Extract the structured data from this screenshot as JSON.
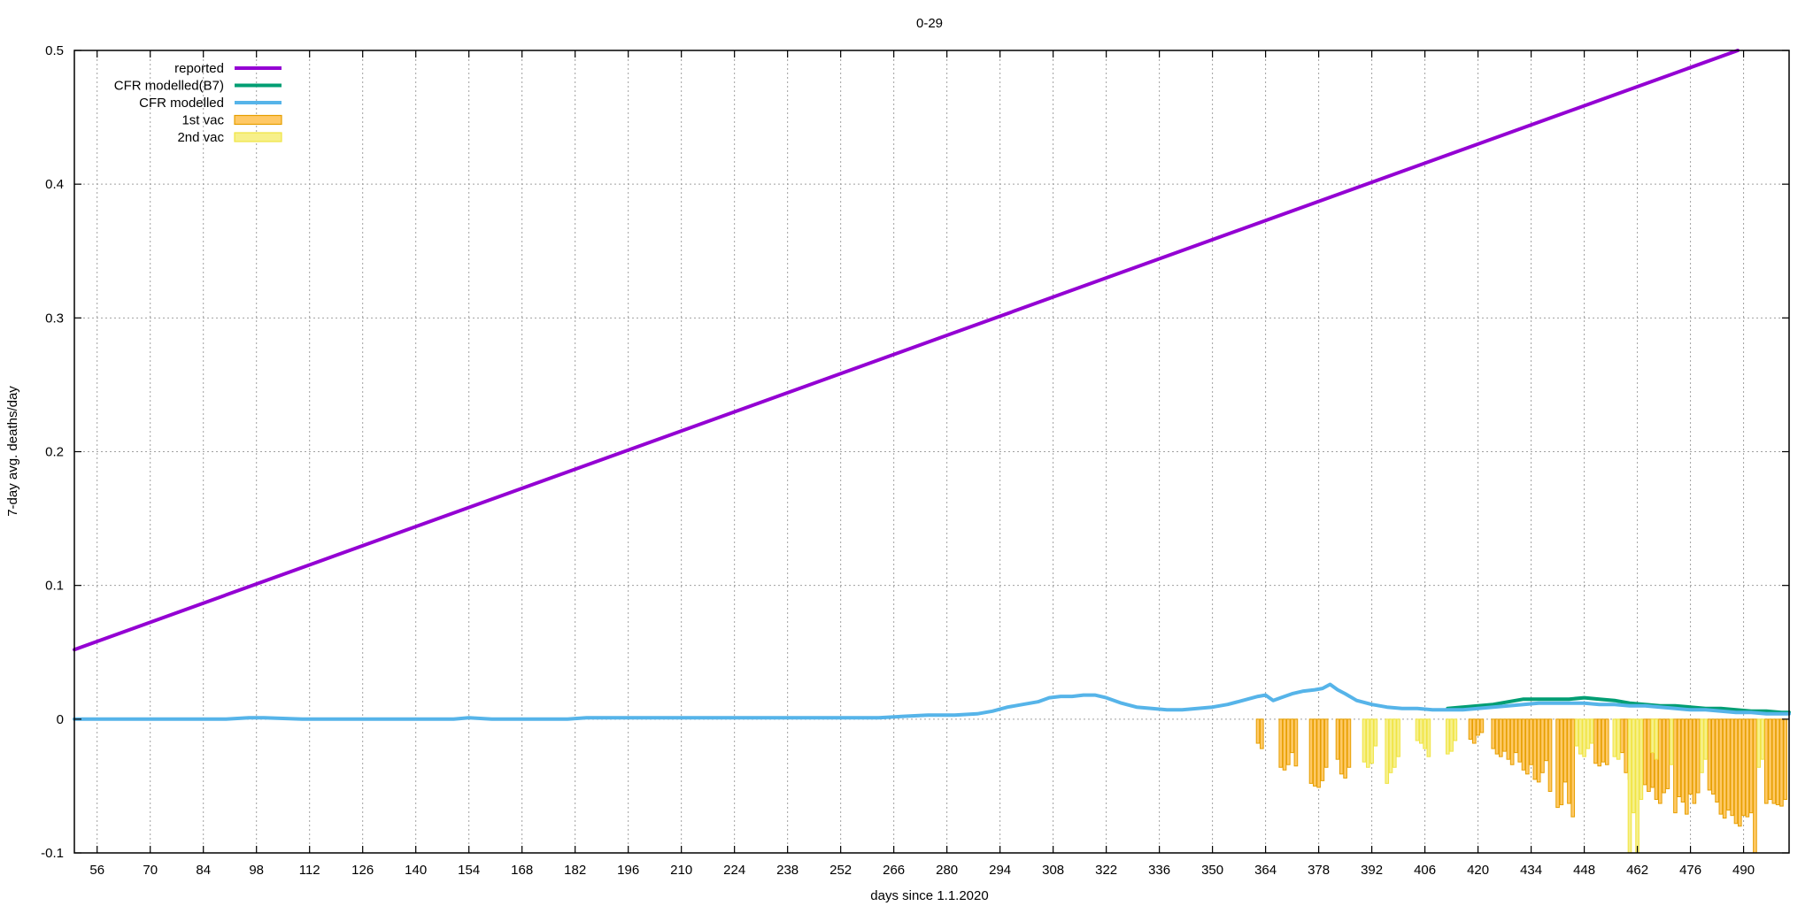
{
  "chart_data": {
    "type": "line",
    "title": "0-29",
    "xlabel": "days since 1.1.2020",
    "ylabel": "7-day avg. deaths/day",
    "xlim": [
      50,
      502
    ],
    "ylim": [
      -0.1,
      0.5
    ],
    "x_ticks": [
      56,
      70,
      84,
      98,
      112,
      126,
      140,
      154,
      168,
      182,
      196,
      210,
      224,
      238,
      252,
      266,
      280,
      294,
      308,
      322,
      336,
      350,
      364,
      378,
      392,
      406,
      420,
      434,
      448,
      462,
      476,
      490
    ],
    "y_ticks": [
      "-0.1",
      "0",
      "0.1",
      "0.2",
      "0.3",
      "0.4",
      "0.5"
    ],
    "grid": true,
    "legend_position": "top-left",
    "legend": [
      {
        "label": "reported",
        "color": "#9400d3",
        "kind": "line"
      },
      {
        "label": "CFR modelled(B7)",
        "color": "#009e73",
        "kind": "line"
      },
      {
        "label": "CFR modelled",
        "color": "#56b4e9",
        "kind": "line"
      },
      {
        "label": "1st vac",
        "color": "#e69f00",
        "kind": "bar"
      },
      {
        "label": "2nd vac",
        "color": "#f0e442",
        "kind": "bar"
      }
    ],
    "series": [
      {
        "name": "reported",
        "color": "#9400d3",
        "x": [
          50,
          488.5
        ],
        "y": [
          0.052,
          0.5
        ]
      },
      {
        "name": "CFR modelled(B7)",
        "color": "#009e73",
        "x": [
          412,
          416,
          420,
          424,
          428,
          432,
          436,
          440,
          444,
          448,
          452,
          456,
          460,
          464,
          468,
          472,
          476,
          480,
          484,
          488,
          492,
          496,
          500,
          502
        ],
        "y": [
          0.008,
          0.009,
          0.01,
          0.011,
          0.013,
          0.015,
          0.015,
          0.015,
          0.015,
          0.016,
          0.015,
          0.014,
          0.012,
          0.011,
          0.01,
          0.01,
          0.009,
          0.008,
          0.008,
          0.007,
          0.006,
          0.006,
          0.005,
          0.005
        ]
      },
      {
        "name": "CFR modelled",
        "color": "#56b4e9",
        "x": [
          50,
          90,
          96,
          100,
          110,
          150,
          154,
          160,
          180,
          185,
          200,
          240,
          262,
          268,
          275,
          282,
          288,
          292,
          296,
          300,
          304,
          307,
          310,
          313,
          316,
          319,
          322,
          326,
          330,
          334,
          338,
          342,
          346,
          350,
          354,
          358,
          362,
          364,
          366,
          368,
          371,
          374,
          377,
          379,
          381,
          383,
          385,
          388,
          392,
          396,
          400,
          404,
          408,
          412,
          416,
          420,
          424,
          428,
          432,
          436,
          440,
          444,
          448,
          452,
          456,
          460,
          464,
          468,
          472,
          476,
          480,
          484,
          488,
          492,
          496,
          500,
          502
        ],
        "y": [
          0.0,
          0.0,
          0.001,
          0.001,
          0.0,
          0.0,
          0.001,
          0.0,
          0.0,
          0.001,
          0.001,
          0.001,
          0.001,
          0.002,
          0.003,
          0.003,
          0.004,
          0.006,
          0.009,
          0.011,
          0.013,
          0.016,
          0.017,
          0.017,
          0.018,
          0.018,
          0.016,
          0.012,
          0.009,
          0.008,
          0.007,
          0.007,
          0.008,
          0.009,
          0.011,
          0.014,
          0.017,
          0.018,
          0.014,
          0.016,
          0.019,
          0.021,
          0.022,
          0.023,
          0.026,
          0.022,
          0.019,
          0.014,
          0.011,
          0.009,
          0.008,
          0.008,
          0.007,
          0.007,
          0.007,
          0.008,
          0.009,
          0.01,
          0.011,
          0.012,
          0.012,
          0.012,
          0.012,
          0.011,
          0.011,
          0.01,
          0.01,
          0.009,
          0.008,
          0.007,
          0.007,
          0.006,
          0.005,
          0.005,
          0.004,
          0.004,
          0.004
        ]
      }
    ],
    "bars": [
      {
        "name": "1st vac",
        "color": "#e69f00",
        "fill": "#ffc966",
        "x": [
          362,
          363,
          368,
          369,
          370,
          371,
          372,
          376,
          377,
          378,
          379,
          380,
          383,
          384,
          385,
          386,
          418,
          419,
          420,
          421,
          424,
          425,
          426,
          427,
          428,
          429,
          430,
          431,
          432,
          433,
          434,
          435,
          436,
          437,
          438,
          439,
          441,
          442,
          443,
          444,
          445,
          451,
          452,
          453,
          454,
          458,
          459,
          460,
          464,
          465,
          466,
          467,
          468,
          469,
          470,
          472,
          473,
          474,
          475,
          476,
          477,
          478,
          481,
          482,
          483,
          484,
          485,
          486,
          487,
          488,
          489,
          490,
          491,
          492,
          493,
          496,
          497,
          498,
          499,
          500,
          501
        ],
        "y": [
          -0.018,
          -0.022,
          -0.036,
          -0.038,
          -0.034,
          -0.025,
          -0.035,
          -0.048,
          -0.05,
          -0.051,
          -0.046,
          -0.036,
          -0.03,
          -0.041,
          -0.044,
          -0.036,
          -0.015,
          -0.018,
          -0.012,
          -0.01,
          -0.022,
          -0.026,
          -0.028,
          -0.024,
          -0.03,
          -0.034,
          -0.025,
          -0.032,
          -0.038,
          -0.041,
          -0.034,
          -0.045,
          -0.047,
          -0.04,
          -0.031,
          -0.054,
          -0.066,
          -0.064,
          -0.047,
          -0.063,
          -0.073,
          -0.033,
          -0.035,
          -0.032,
          -0.034,
          -0.025,
          -0.04,
          -0.045,
          -0.049,
          -0.054,
          -0.051,
          -0.06,
          -0.063,
          -0.055,
          -0.052,
          -0.07,
          -0.058,
          -0.062,
          -0.071,
          -0.056,
          -0.063,
          -0.055,
          -0.053,
          -0.056,
          -0.062,
          -0.071,
          -0.074,
          -0.068,
          -0.072,
          -0.078,
          -0.08,
          -0.072,
          -0.073,
          -0.07,
          -0.1,
          -0.063,
          -0.06,
          -0.063,
          -0.064,
          -0.065,
          -0.06
        ]
      },
      {
        "name": "2nd vac",
        "color": "#f0e442",
        "fill": "#f7f08a",
        "x": [
          390,
          391,
          392,
          393,
          396,
          397,
          398,
          399,
          404,
          405,
          406,
          407,
          412,
          413,
          414,
          446,
          447,
          448,
          449,
          450,
          456,
          457,
          460,
          461,
          462,
          463,
          466,
          467,
          471,
          479,
          480,
          494,
          495
        ],
        "y": [
          -0.032,
          -0.036,
          -0.033,
          -0.02,
          -0.048,
          -0.04,
          -0.036,
          -0.028,
          -0.016,
          -0.018,
          -0.022,
          -0.028,
          -0.026,
          -0.024,
          -0.016,
          -0.02,
          -0.026,
          -0.028,
          -0.022,
          -0.018,
          -0.028,
          -0.03,
          -0.1,
          -0.07,
          -0.1,
          -0.06,
          -0.025,
          -0.03,
          -0.034,
          -0.04,
          -0.03,
          -0.036,
          -0.03
        ]
      }
    ]
  }
}
